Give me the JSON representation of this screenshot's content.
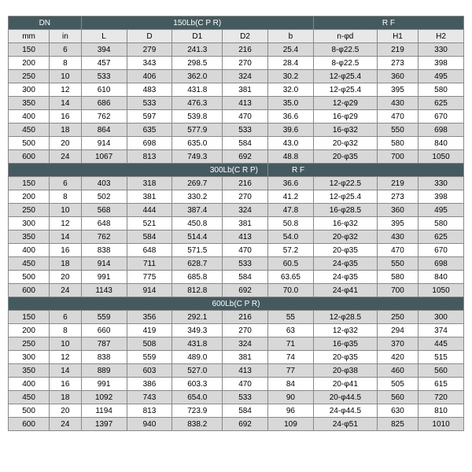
{
  "colors": {
    "header_bg": "#455a5f",
    "header_fg": "#ffffff",
    "alt_row_gray": "#d8d8d8",
    "alt_row_white": "#ffffff",
    "border": "#888888"
  },
  "top_header": {
    "dn": "DN",
    "group": "150Lb(C P R)",
    "rf": "R F"
  },
  "cols": [
    "mm",
    "in",
    "L",
    "D",
    "D1",
    "D2",
    "b",
    "n-φd",
    "H1",
    "H2"
  ],
  "section1": {
    "rows": [
      [
        "150",
        "6",
        "394",
        "279",
        "241.3",
        "216",
        "25.4",
        "8-φ22.5",
        "219",
        "330"
      ],
      [
        "200",
        "8",
        "457",
        "343",
        "298.5",
        "270",
        "28.4",
        "8-φ22.5",
        "273",
        "398"
      ],
      [
        "250",
        "10",
        "533",
        "406",
        "362.0",
        "324",
        "30.2",
        "12-φ25.4",
        "360",
        "495"
      ],
      [
        "300",
        "12",
        "610",
        "483",
        "431.8",
        "381",
        "32.0",
        "12-φ25.4",
        "395",
        "580"
      ],
      [
        "350",
        "14",
        "686",
        "533",
        "476.3",
        "413",
        "35.0",
        "12-φ29",
        "430",
        "625"
      ],
      [
        "400",
        "16",
        "762",
        "597",
        "539.8",
        "470",
        "36.6",
        "16-φ29",
        "470",
        "670"
      ],
      [
        "450",
        "18",
        "864",
        "635",
        "577.9",
        "533",
        "39.6",
        "16-φ32",
        "550",
        "698"
      ],
      [
        "500",
        "20",
        "914",
        "698",
        "635.0",
        "584",
        "43.0",
        "20-φ32",
        "580",
        "840"
      ],
      [
        "600",
        "24",
        "1067",
        "813",
        "749.3",
        "692",
        "48.8",
        "20-φ35",
        "700",
        "1050"
      ]
    ]
  },
  "section2": {
    "title_left": "300Lb(C R P)",
    "title_right": "R F",
    "rows": [
      [
        "150",
        "6",
        "403",
        "318",
        "269.7",
        "216",
        "36.6",
        "12-φ22.5",
        "219",
        "330"
      ],
      [
        "200",
        "8",
        "502",
        "381",
        "330.2",
        "270",
        "41.2",
        "12-φ25.4",
        "273",
        "398"
      ],
      [
        "250",
        "10",
        "568",
        "444",
        "387.4",
        "324",
        "47.8",
        "16-φ28.5",
        "360",
        "495"
      ],
      [
        "300",
        "12",
        "648",
        "521",
        "450.8",
        "381",
        "50.8",
        "16-φ32",
        "395",
        "580"
      ],
      [
        "350",
        "14",
        "762",
        "584",
        "514.4",
        "413",
        "54.0",
        "20-φ32",
        "430",
        "625"
      ],
      [
        "400",
        "16",
        "838",
        "648",
        "571.5",
        "470",
        "57.2",
        "20-φ35",
        "470",
        "670"
      ],
      [
        "450",
        "18",
        "914",
        "711",
        "628.7",
        "533",
        "60.5",
        "24-φ35",
        "550",
        "698"
      ],
      [
        "500",
        "20",
        "991",
        "775",
        "685.8",
        "584",
        "63.65",
        "24-φ35",
        "580",
        "840"
      ],
      [
        "600",
        "24",
        "1143",
        "914",
        "812.8",
        "692",
        "70.0",
        "24-φ41",
        "700",
        "1050"
      ]
    ]
  },
  "section3": {
    "title": "600Lb(C P R)",
    "rows": [
      [
        "150",
        "6",
        "559",
        "356",
        "292.1",
        "216",
        "55",
        "12-φ28.5",
        "250",
        "300"
      ],
      [
        "200",
        "8",
        "660",
        "419",
        "349.3",
        "270",
        "63",
        "12-φ32",
        "294",
        "374"
      ],
      [
        "250",
        "10",
        "787",
        "508",
        "431.8",
        "324",
        "71",
        "16-φ35",
        "370",
        "445"
      ],
      [
        "300",
        "12",
        "838",
        "559",
        "489.0",
        "381",
        "74",
        "20-φ35",
        "420",
        "515"
      ],
      [
        "350",
        "14",
        "889",
        "603",
        "527.0",
        "413",
        "77",
        "20-φ38",
        "460",
        "560"
      ],
      [
        "400",
        "16",
        "991",
        "386",
        "603.3",
        "470",
        "84",
        "20-φ41",
        "505",
        "615"
      ],
      [
        "450",
        "18",
        "1092",
        "743",
        "654.0",
        "533",
        "90",
        "20-φ44.5",
        "560",
        "720"
      ],
      [
        "500",
        "20",
        "1194",
        "813",
        "723.9",
        "584",
        "96",
        "24-φ44.5",
        "630",
        "810"
      ],
      [
        "600",
        "24",
        "1397",
        "940",
        "838.2",
        "692",
        "109",
        "24-φ51",
        "825",
        "1010"
      ]
    ]
  }
}
